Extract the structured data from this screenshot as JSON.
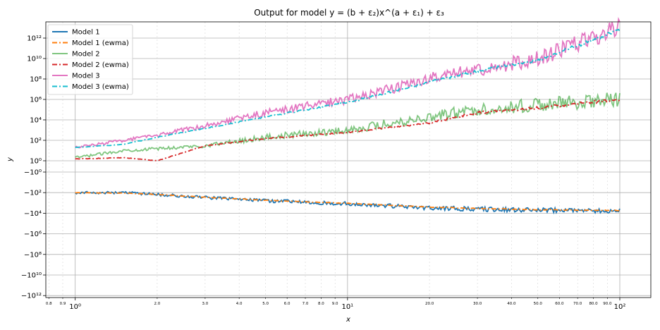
{
  "chart_data": {
    "type": "line",
    "title": "Output for model y = (b + ε₂)x^(a + ε₁) + ε₃",
    "xlabel": "x",
    "ylabel": "y",
    "xscale": "log",
    "yscale": "symlog",
    "xlim": [
      0.78,
      130
    ],
    "ylim": [
      -1000000000000.0,
      10000000000000.0
    ],
    "grid": true,
    "legend_position": "upper-left",
    "x_major_ticks": [
      {
        "value": 1,
        "label": "10⁰"
      },
      {
        "value": 10,
        "label": "10¹"
      },
      {
        "value": 100,
        "label": "10²"
      }
    ],
    "x_minor_ticks": [
      {
        "value": 0.8,
        "label": "0.8"
      },
      {
        "value": 0.9,
        "label": "0.9"
      },
      {
        "value": 2,
        "label": "2.0"
      },
      {
        "value": 3,
        "label": "3.0"
      },
      {
        "value": 4,
        "label": "4.0"
      },
      {
        "value": 5,
        "label": "5.0"
      },
      {
        "value": 6,
        "label": "6.0"
      },
      {
        "value": 7,
        "label": "7.0"
      },
      {
        "value": 8,
        "label": "8.0"
      },
      {
        "value": 9,
        "label": "9.0"
      },
      {
        "value": 20,
        "label": "20.0"
      },
      {
        "value": 30,
        "label": "30.0"
      },
      {
        "value": 40,
        "label": "40.0"
      },
      {
        "value": 50,
        "label": "50.0"
      },
      {
        "value": 60,
        "label": "60.0"
      },
      {
        "value": 70,
        "label": "70.0"
      },
      {
        "value": 80,
        "label": "80.0"
      },
      {
        "value": 90,
        "label": "90.0"
      }
    ],
    "y_ticks": [
      {
        "value": 1000000000000.0,
        "label": "10¹²"
      },
      {
        "value": 10000000000.0,
        "label": "10¹⁰"
      },
      {
        "value": 100000000.0,
        "label": "10⁸"
      },
      {
        "value": 1000000.0,
        "label": "10⁶"
      },
      {
        "value": 10000.0,
        "label": "10⁴"
      },
      {
        "value": 100.0,
        "label": "10²"
      },
      {
        "value": 1,
        "label": "10⁰"
      },
      {
        "value": -1,
        "label": "−10⁰"
      },
      {
        "value": -100.0,
        "label": "−10²"
      },
      {
        "value": -10000.0,
        "label": "−10⁴"
      },
      {
        "value": -1000000.0,
        "label": "−10⁶"
      },
      {
        "value": -100000000.0,
        "label": "−10⁸"
      },
      {
        "value": -10000000000.0,
        "label": "−10¹⁰"
      },
      {
        "value": -1000000000000.0,
        "label": "−10¹²"
      }
    ],
    "series": [
      {
        "name": "Model 1",
        "color": "#1f77b4",
        "style": "solid",
        "x": [
          1,
          1.5,
          2,
          3,
          5,
          10,
          20,
          30,
          50,
          100
        ],
        "y": [
          -100,
          -100,
          -150,
          -300,
          -600,
          -1200,
          -3000,
          -4000,
          -5000,
          -6000
        ]
      },
      {
        "name": "Model 1 (ewma)",
        "color": "#ff7f0e",
        "style": "dashdot",
        "x": [
          1,
          1.5,
          2,
          3,
          5,
          10,
          20,
          30,
          50,
          100
        ],
        "y": [
          -100,
          -110,
          -150,
          -280,
          -550,
          -1100,
          -2500,
          -3500,
          -4500,
          -5500
        ]
      },
      {
        "name": "Model 2",
        "color": "#2ca02c",
        "style": "solid",
        "x": [
          1,
          1.5,
          2,
          3,
          5,
          10,
          20,
          30,
          50,
          100
        ],
        "y": [
          2,
          10,
          15,
          30,
          200,
          1000,
          20000,
          100000,
          300000,
          1000000
        ]
      },
      {
        "name": "Model 2 (ewma)",
        "color": "#d62728",
        "style": "dashdot",
        "x": [
          1,
          1.5,
          2,
          3,
          5,
          10,
          20,
          30,
          50,
          100
        ],
        "y": [
          1.5,
          2,
          1,
          30,
          150,
          600,
          5000,
          50000,
          150000,
          1000000
        ]
      },
      {
        "name": "Model 3",
        "color": "#e377c2",
        "style": "solid",
        "x": [
          1,
          1.5,
          2,
          3,
          5,
          10,
          20,
          30,
          50,
          100
        ],
        "y": [
          20,
          100,
          300,
          3000,
          50000,
          1000000.0,
          100000000.0,
          800000000.0,
          10000000000.0,
          10000000000000.0
        ]
      },
      {
        "name": "Model 3 (ewma)",
        "color": "#17becf",
        "style": "dashdot",
        "x": [
          1,
          1.5,
          2,
          3,
          5,
          10,
          20,
          30,
          50,
          100
        ],
        "y": [
          20,
          40,
          200,
          1500,
          20000,
          500000,
          50000000.0,
          600000000.0,
          7000000000.0,
          6000000000000.0
        ]
      }
    ]
  }
}
